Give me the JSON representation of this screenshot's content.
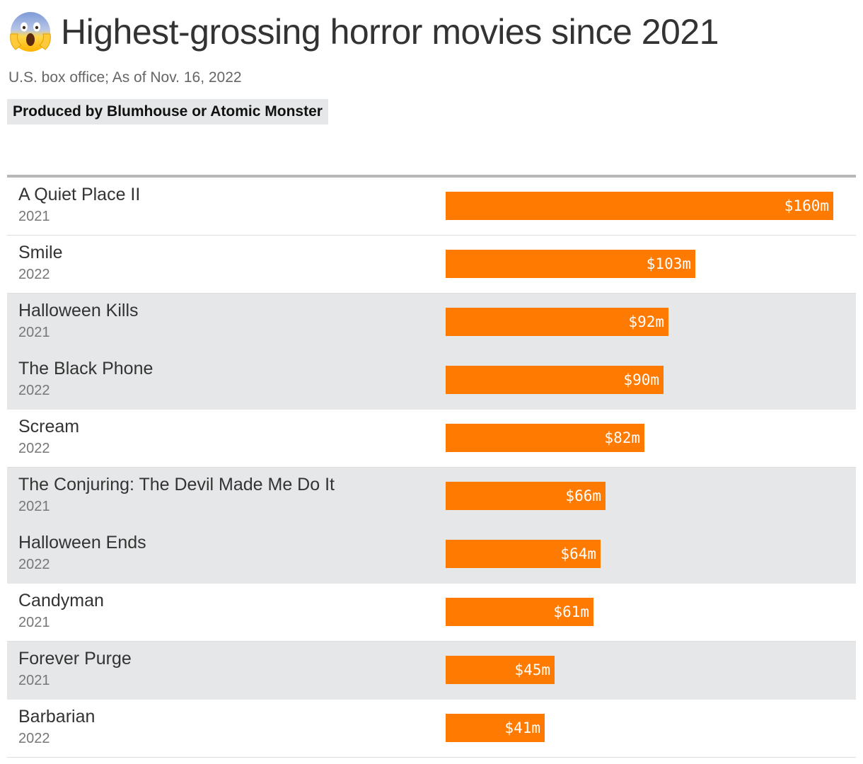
{
  "header": {
    "icon": "screaming-face-emoji",
    "title": "Highest-grossing horror movies since 2021",
    "subtitle": "U.S. box office; As of Nov. 16, 2022",
    "legend_label": "Produced by Blumhouse or Atomic Monster"
  },
  "colors": {
    "bar": "#ff7a00",
    "highlight_row": "#e6e7e8"
  },
  "chart_data": {
    "type": "bar",
    "orientation": "horizontal",
    "title": "Highest-grossing horror movies since 2021",
    "subtitle": "U.S. box office; As of Nov. 16, 2022",
    "unit": "$m",
    "xlim": [
      0,
      160
    ],
    "categories": [
      "A Quiet Place II",
      "Smile",
      "Halloween Kills",
      "The Black Phone",
      "Scream",
      "The Conjuring: The Devil Made Me Do It",
      "Halloween Ends",
      "Candyman",
      "Forever Purge",
      "Barbarian"
    ],
    "years": [
      "2021",
      "2022",
      "2021",
      "2022",
      "2022",
      "2021",
      "2022",
      "2021",
      "2021",
      "2022"
    ],
    "values": [
      160,
      103,
      92,
      90,
      82,
      66,
      64,
      61,
      45,
      41
    ],
    "labels": [
      "$160m",
      "$103m",
      "$92m",
      "$90m",
      "$82m",
      "$66m",
      "$64m",
      "$61m",
      "$45m",
      "$41m"
    ],
    "highlighted": [
      false,
      false,
      true,
      true,
      false,
      true,
      true,
      false,
      true,
      false
    ]
  }
}
